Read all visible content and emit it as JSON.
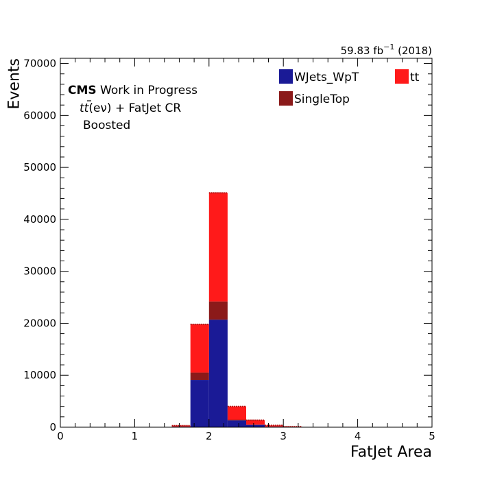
{
  "chart_data": {
    "type": "bar",
    "stacked": true,
    "histogram": true,
    "xlabel": "FatJet Area",
    "ylabel": "Events",
    "xlim": [
      0,
      5
    ],
    "ylim": [
      0,
      71000
    ],
    "bin_edges": [
      1.5,
      1.75,
      2.0,
      2.25,
      2.5,
      2.75,
      3.0,
      3.25
    ],
    "series": [
      {
        "name": "WJets_WpT",
        "color": "#1a1a96",
        "values": [
          100,
          9100,
          20700,
          1300,
          450,
          100,
          20
        ]
      },
      {
        "name": "SingleTop",
        "color": "#8b1a1a",
        "values": [
          20,
          1400,
          3500,
          150,
          50,
          15,
          5
        ]
      },
      {
        "name": "tt",
        "color": "#ff1a1a",
        "values": [
          180,
          9300,
          20900,
          2550,
          850,
          235,
          75
        ]
      }
    ],
    "x_ticks": [
      {
        "value": 0,
        "label": "0"
      },
      {
        "value": 1,
        "label": "1"
      },
      {
        "value": 2,
        "label": "2"
      },
      {
        "value": 3,
        "label": "3"
      },
      {
        "value": 4,
        "label": "4"
      },
      {
        "value": 5,
        "label": "5"
      }
    ],
    "y_ticks": [
      {
        "value": 0,
        "label": "0"
      },
      {
        "value": 10000,
        "label": "10000"
      },
      {
        "value": 20000,
        "label": "20000"
      },
      {
        "value": 30000,
        "label": "30000"
      },
      {
        "value": 40000,
        "label": "40000"
      },
      {
        "value": 50000,
        "label": "50000"
      },
      {
        "value": 60000,
        "label": "60000"
      },
      {
        "value": 70000,
        "label": "70000"
      }
    ],
    "lumi_label": "59.83 fb",
    "lumi_exponent": "−1",
    "lumi_year": " (2018)",
    "cms_label": "CMS",
    "cms_extra": " Work in Progress",
    "region_suffix": "(eν) + FatJet CR",
    "region_tag": "Boosted",
    "legend_position": "top-right"
  }
}
